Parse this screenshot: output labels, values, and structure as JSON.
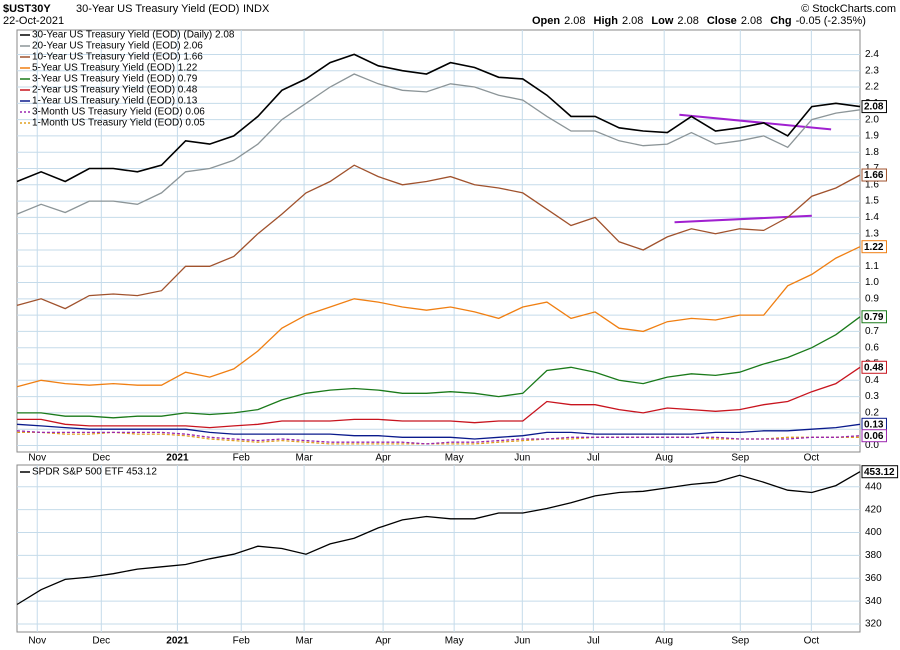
{
  "header": {
    "symbol": "$UST30Y",
    "name": "30-Year US Treasury Yield (EOD)",
    "exchange": "INDX",
    "date": "22-Oct-2021",
    "quote": [
      {
        "label": "Open",
        "value": "2.08"
      },
      {
        "label": "High",
        "value": "2.08"
      },
      {
        "label": "Low",
        "value": "2.08"
      },
      {
        "label": "Close",
        "value": "2.08"
      },
      {
        "label": "Chg",
        "value": "-0.05 (-2.35%)"
      }
    ],
    "credit": "© StockCharts.com"
  },
  "chart_data": [
    {
      "type": "line",
      "xlim": [
        0,
        35
      ],
      "ylim": [
        -0.04,
        2.55
      ],
      "grid": true,
      "xticks": [
        {
          "value": 0.84,
          "label": "Nov"
        },
        {
          "value": 3.5,
          "label": "Dec"
        },
        {
          "value": 6.66,
          "label": "2021"
        },
        {
          "value": 9.31,
          "label": "Feb"
        },
        {
          "value": 11.92,
          "label": "Mar"
        },
        {
          "value": 15.2,
          "label": "Apr"
        },
        {
          "value": 18.15,
          "label": "May"
        },
        {
          "value": 20.98,
          "label": "Jun"
        },
        {
          "value": 23.93,
          "label": "Jul"
        },
        {
          "value": 26.87,
          "label": "Aug"
        },
        {
          "value": 30.03,
          "label": "Sep"
        },
        {
          "value": 32.98,
          "label": "Oct"
        }
      ],
      "yticks": [
        {
          "value": 0,
          "label": "0.0"
        },
        0.1,
        0.2,
        0.3,
        0.4,
        0.5,
        0.6,
        0.7,
        0.8,
        0.9,
        {
          "value": 1,
          "label": "1.0"
        },
        1.1,
        1.2,
        1.3,
        1.4,
        1.5,
        1.6,
        1.7,
        1.8,
        1.9,
        {
          "value": 2,
          "label": "2.0"
        },
        2.1,
        2.2,
        2.3,
        2.4
      ],
      "series": [
        {
          "name": "30-Year US Treasury Yield (EOD) (Daily) 2.08",
          "color": "#000000",
          "dash": false,
          "last_box": true,
          "values": [
            1.62,
            1.68,
            1.62,
            1.7,
            1.7,
            1.68,
            1.72,
            1.87,
            1.85,
            1.9,
            2.02,
            2.18,
            2.25,
            2.35,
            2.4,
            2.33,
            2.3,
            2.28,
            2.35,
            2.32,
            2.26,
            2.25,
            2.15,
            2.02,
            2.02,
            1.95,
            1.93,
            1.92,
            2.02,
            1.93,
            1.95,
            1.98,
            1.9,
            2.08,
            2.1,
            2.08
          ]
        },
        {
          "name": "20-Year US Treasury Yield (EOD) 2.06",
          "color": "#8c9598",
          "dash": false,
          "last_box": false,
          "values": [
            1.42,
            1.48,
            1.43,
            1.5,
            1.5,
            1.48,
            1.55,
            1.68,
            1.7,
            1.75,
            1.85,
            2.0,
            2.1,
            2.2,
            2.28,
            2.22,
            2.18,
            2.17,
            2.22,
            2.2,
            2.15,
            2.12,
            2.02,
            1.93,
            1.93,
            1.87,
            1.84,
            1.85,
            1.92,
            1.85,
            1.87,
            1.9,
            1.83,
            2.0,
            2.04,
            2.06
          ]
        },
        {
          "name": "10-Year US Treasury Yield (EOD) 1.66",
          "color": "#a0522d",
          "dash": false,
          "last_box": true,
          "values": [
            0.86,
            0.9,
            0.84,
            0.92,
            0.93,
            0.92,
            0.95,
            1.1,
            1.1,
            1.16,
            1.3,
            1.42,
            1.55,
            1.62,
            1.72,
            1.65,
            1.6,
            1.62,
            1.65,
            1.6,
            1.58,
            1.55,
            1.45,
            1.35,
            1.4,
            1.25,
            1.2,
            1.28,
            1.33,
            1.3,
            1.33,
            1.32,
            1.4,
            1.53,
            1.58,
            1.66
          ]
        },
        {
          "name": "5-Year US Treasury Yield (EOD) 1.22",
          "color": "#f07f12",
          "dash": false,
          "last_box": true,
          "values": [
            0.36,
            0.4,
            0.38,
            0.37,
            0.38,
            0.37,
            0.37,
            0.45,
            0.42,
            0.47,
            0.58,
            0.72,
            0.8,
            0.85,
            0.9,
            0.88,
            0.85,
            0.83,
            0.85,
            0.82,
            0.78,
            0.85,
            0.88,
            0.78,
            0.82,
            0.72,
            0.7,
            0.76,
            0.78,
            0.77,
            0.8,
            0.8,
            0.98,
            1.05,
            1.15,
            1.22
          ]
        },
        {
          "name": "3-Year US Treasury Yield (EOD) 0.79",
          "color": "#1a7a1a",
          "dash": false,
          "last_box": true,
          "values": [
            0.2,
            0.2,
            0.18,
            0.18,
            0.17,
            0.18,
            0.18,
            0.2,
            0.19,
            0.2,
            0.22,
            0.28,
            0.32,
            0.34,
            0.35,
            0.34,
            0.32,
            0.32,
            0.33,
            0.32,
            0.3,
            0.32,
            0.46,
            0.48,
            0.45,
            0.4,
            0.38,
            0.42,
            0.44,
            0.43,
            0.45,
            0.5,
            0.54,
            0.6,
            0.68,
            0.79
          ]
        },
        {
          "name": "2-Year US Treasury Yield (EOD) 0.48",
          "color": "#c8141e",
          "dash": false,
          "last_box": true,
          "values": [
            0.16,
            0.16,
            0.13,
            0.12,
            0.12,
            0.12,
            0.12,
            0.12,
            0.11,
            0.12,
            0.13,
            0.15,
            0.15,
            0.15,
            0.16,
            0.16,
            0.15,
            0.15,
            0.15,
            0.14,
            0.15,
            0.15,
            0.27,
            0.25,
            0.25,
            0.22,
            0.2,
            0.23,
            0.22,
            0.21,
            0.22,
            0.25,
            0.27,
            0.33,
            0.38,
            0.48
          ]
        },
        {
          "name": "1-Year US Treasury Yield (EOD) 0.13",
          "color": "#0a1a8c",
          "dash": false,
          "last_box": true,
          "values": [
            0.13,
            0.12,
            0.11,
            0.1,
            0.1,
            0.1,
            0.1,
            0.1,
            0.08,
            0.07,
            0.07,
            0.07,
            0.07,
            0.07,
            0.06,
            0.06,
            0.05,
            0.05,
            0.05,
            0.04,
            0.05,
            0.06,
            0.08,
            0.08,
            0.07,
            0.07,
            0.07,
            0.07,
            0.07,
            0.08,
            0.08,
            0.09,
            0.09,
            0.1,
            0.11,
            0.13
          ]
        },
        {
          "name": "3-Month US Treasury Yield (EOD) 0.06",
          "color": "#9b27b0",
          "dash": true,
          "last_box": true,
          "values": [
            0.09,
            0.08,
            0.08,
            0.08,
            0.08,
            0.08,
            0.08,
            0.07,
            0.05,
            0.04,
            0.03,
            0.04,
            0.03,
            0.02,
            0.02,
            0.02,
            0.02,
            0.01,
            0.02,
            0.02,
            0.03,
            0.04,
            0.04,
            0.05,
            0.05,
            0.05,
            0.05,
            0.05,
            0.05,
            0.05,
            0.04,
            0.04,
            0.04,
            0.05,
            0.05,
            0.06
          ]
        },
        {
          "name": "1-Month US Treasury Yield (EOD) 0.05",
          "color": "#e0a020",
          "dash": true,
          "last_box": false,
          "values": [
            0.08,
            0.08,
            0.07,
            0.07,
            0.08,
            0.07,
            0.07,
            0.06,
            0.04,
            0.03,
            0.02,
            0.03,
            0.02,
            0.01,
            0.01,
            0.01,
            0.01,
            0.01,
            0.01,
            0.01,
            0.02,
            0.03,
            0.04,
            0.04,
            0.05,
            0.05,
            0.05,
            0.05,
            0.05,
            0.04,
            0.04,
            0.04,
            0.05,
            0.05,
            0.05,
            0.05
          ]
        }
      ],
      "trendlines": [
        {
          "color": "#a020d0",
          "x": [
            27.5,
            33.8
          ],
          "y": [
            2.03,
            1.94
          ]
        },
        {
          "color": "#a020d0",
          "x": [
            27.3,
            33.0
          ],
          "y": [
            1.37,
            1.41
          ]
        }
      ]
    },
    {
      "type": "line",
      "xlim": [
        0,
        35
      ],
      "ylim": [
        313,
        459
      ],
      "grid": true,
      "xticks": [
        {
          "value": 0.84,
          "label": "Nov"
        },
        {
          "value": 3.5,
          "label": "Dec"
        },
        {
          "value": 6.66,
          "label": "2021"
        },
        {
          "value": 9.31,
          "label": "Feb"
        },
        {
          "value": 11.92,
          "label": "Mar"
        },
        {
          "value": 15.2,
          "label": "Apr"
        },
        {
          "value": 18.15,
          "label": "May"
        },
        {
          "value": 20.98,
          "label": "Jun"
        },
        {
          "value": 23.93,
          "label": "Jul"
        },
        {
          "value": 26.87,
          "label": "Aug"
        },
        {
          "value": 30.03,
          "label": "Sep"
        },
        {
          "value": 32.98,
          "label": "Oct"
        }
      ],
      "yticks": [
        320,
        340,
        360,
        380,
        400,
        420,
        440
      ],
      "series": [
        {
          "name": "SPDR S&P 500 ETF 453.12",
          "color": "#000000",
          "dash": false,
          "last_box": true,
          "values": [
            337,
            350,
            359,
            361,
            364,
            368,
            370,
            372,
            377,
            381,
            388,
            386,
            381,
            390,
            395,
            404,
            411,
            414,
            412,
            412,
            417,
            417,
            421,
            426,
            432,
            435,
            436,
            439,
            442,
            444,
            450,
            444,
            437,
            435,
            441,
            453.12
          ]
        }
      ]
    }
  ]
}
